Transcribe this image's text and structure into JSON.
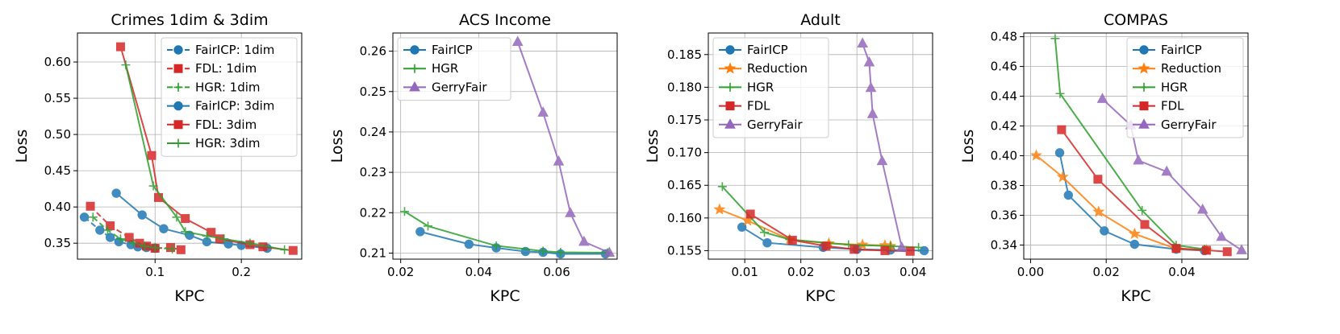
{
  "colors": {
    "blue": "#1f77b4",
    "orange": "#ff7f0e",
    "green": "#2ca02c",
    "red": "#d62728",
    "purple": "#9467bd"
  },
  "chart_data": [
    {
      "type": "line",
      "title": "Crimes 1dim & 3dim",
      "xlabel": "KPC",
      "ylabel": "Loss",
      "xlim": [
        0.01,
        0.27
      ],
      "ylim": [
        0.328,
        0.64
      ],
      "xticks": [
        "0.1",
        "0.2"
      ],
      "xtick_values": [
        0.1,
        0.2
      ],
      "yticks": [
        "0.35",
        "0.40",
        "0.45",
        "0.50",
        "0.55",
        "0.60"
      ],
      "ytick_values": [
        0.35,
        0.4,
        0.45,
        0.5,
        0.55,
        0.6
      ],
      "grid": true,
      "legend_position": "top-right",
      "series": [
        {
          "name": "FairICP: 1dim",
          "color": "blue",
          "marker": "circle",
          "dashed": true,
          "points": [
            [
              0.018,
              0.386
            ],
            [
              0.036,
              0.368
            ],
            [
              0.048,
              0.358
            ],
            [
              0.058,
              0.352
            ],
            [
              0.072,
              0.348
            ],
            [
              0.08,
              0.345
            ],
            [
              0.09,
              0.344
            ],
            [
              0.1,
              0.343
            ]
          ]
        },
        {
          "name": "FDL: 1dim",
          "color": "red",
          "marker": "square",
          "dashed": true,
          "points": [
            [
              0.025,
              0.401
            ],
            [
              0.048,
              0.374
            ],
            [
              0.07,
              0.358
            ],
            [
              0.082,
              0.35
            ],
            [
              0.09,
              0.346
            ],
            [
              0.1,
              0.343
            ],
            [
              0.118,
              0.344
            ],
            [
              0.13,
              0.341
            ]
          ]
        },
        {
          "name": "HGR: 1dim",
          "color": "green",
          "marker": "plus",
          "dashed": true,
          "points": [
            [
              0.028,
              0.386
            ],
            [
              0.045,
              0.368
            ],
            [
              0.06,
              0.356
            ],
            [
              0.075,
              0.35
            ],
            [
              0.088,
              0.346
            ],
            [
              0.1,
              0.344
            ],
            [
              0.12,
              0.342
            ]
          ]
        },
        {
          "name": "FairICP: 3dim",
          "color": "blue",
          "marker": "circle",
          "dashed": false,
          "points": [
            [
              0.055,
              0.419
            ],
            [
              0.085,
              0.389
            ],
            [
              0.11,
              0.37
            ],
            [
              0.14,
              0.361
            ],
            [
              0.16,
              0.352
            ],
            [
              0.185,
              0.349
            ],
            [
              0.2,
              0.347
            ],
            [
              0.23,
              0.343
            ]
          ]
        },
        {
          "name": "FDL: 3dim",
          "color": "red",
          "marker": "square",
          "dashed": false,
          "points": [
            [
              0.06,
              0.621
            ],
            [
              0.096,
              0.471
            ],
            [
              0.104,
              0.413
            ],
            [
              0.135,
              0.384
            ],
            [
              0.165,
              0.365
            ],
            [
              0.175,
              0.356
            ],
            [
              0.21,
              0.348
            ],
            [
              0.225,
              0.345
            ],
            [
              0.26,
              0.34
            ]
          ]
        },
        {
          "name": "HGR: 3dim",
          "color": "green",
          "marker": "plus",
          "dashed": false,
          "points": [
            [
              0.066,
              0.596
            ],
            [
              0.098,
              0.429
            ],
            [
              0.125,
              0.386
            ],
            [
              0.135,
              0.366
            ],
            [
              0.16,
              0.36
            ],
            [
              0.18,
              0.356
            ],
            [
              0.21,
              0.35
            ],
            [
              0.25,
              0.341
            ]
          ]
        }
      ]
    },
    {
      "type": "line",
      "title": "ACS Income",
      "xlabel": "KPC",
      "ylabel": "Loss",
      "xlim": [
        0.018,
        0.0755
      ],
      "ylim": [
        0.2085,
        0.2645
      ],
      "xticks": [
        "0.02",
        "0.04",
        "0.06"
      ],
      "xtick_values": [
        0.02,
        0.04,
        0.06
      ],
      "yticks": [
        "0.21",
        "0.22",
        "0.23",
        "0.24",
        "0.25",
        "0.26"
      ],
      "ytick_values": [
        0.21,
        0.22,
        0.23,
        0.24,
        0.25,
        0.26
      ],
      "grid": true,
      "legend_position": "top-left",
      "series": [
        {
          "name": "FairICP",
          "color": "blue",
          "marker": "circle",
          "dashed": false,
          "points": [
            [
              0.025,
              0.2153
            ],
            [
              0.0375,
              0.2122
            ],
            [
              0.0445,
              0.2113
            ],
            [
              0.052,
              0.2104
            ],
            [
              0.0565,
              0.2102
            ],
            [
              0.061,
              0.2098
            ],
            [
              0.0725,
              0.2098
            ]
          ]
        },
        {
          "name": "HGR",
          "color": "green",
          "marker": "plus",
          "dashed": false,
          "points": [
            [
              0.021,
              0.2203
            ],
            [
              0.027,
              0.2167
            ],
            [
              0.0445,
              0.2118
            ],
            [
              0.0565,
              0.2105
            ],
            [
              0.061,
              0.2102
            ],
            [
              0.073,
              0.2101
            ]
          ]
        },
        {
          "name": "GerryFair",
          "color": "purple",
          "marker": "triangle",
          "dashed": false,
          "points": [
            [
              0.05,
              0.2623
            ],
            [
              0.0565,
              0.2448
            ],
            [
              0.0605,
              0.2327
            ],
            [
              0.0635,
              0.2199
            ],
            [
              0.067,
              0.2128
            ],
            [
              0.0735,
              0.2101
            ]
          ]
        }
      ]
    },
    {
      "type": "line",
      "title": "Adult",
      "xlabel": "KPC",
      "ylabel": "Loss",
      "xlim": [
        0.0035,
        0.0435
      ],
      "ylim": [
        0.1537,
        0.1883
      ],
      "xticks": [
        "0.01",
        "0.02",
        "0.03",
        "0.04"
      ],
      "xtick_values": [
        0.01,
        0.02,
        0.03,
        0.04
      ],
      "yticks": [
        "0.155",
        "0.160",
        "0.165",
        "0.170",
        "0.175",
        "0.180",
        "0.185"
      ],
      "ytick_values": [
        0.155,
        0.16,
        0.165,
        0.17,
        0.175,
        0.18,
        0.185
      ],
      "grid": true,
      "legend_position": "top-left",
      "series": [
        {
          "name": "FairICP",
          "color": "blue",
          "marker": "circle",
          "dashed": false,
          "points": [
            [
              0.0095,
              0.1586
            ],
            [
              0.014,
              0.1562
            ],
            [
              0.024,
              0.1555
            ],
            [
              0.03,
              0.1552
            ],
            [
              0.036,
              0.1551
            ],
            [
              0.042,
              0.155
            ]
          ]
        },
        {
          "name": "Reduction",
          "color": "orange",
          "marker": "star",
          "dashed": false,
          "points": [
            [
              0.0055,
              0.1613
            ],
            [
              0.0105,
              0.1596
            ],
            [
              0.018,
              0.1567
            ],
            [
              0.025,
              0.1561
            ],
            [
              0.031,
              0.1559
            ],
            [
              0.035,
              0.1558
            ],
            [
              0.036,
              0.1557
            ]
          ]
        },
        {
          "name": "HGR",
          "color": "green",
          "marker": "plus",
          "dashed": false,
          "points": [
            [
              0.006,
              0.1648
            ],
            [
              0.0135,
              0.1578
            ],
            [
              0.018,
              0.1567
            ],
            [
              0.0285,
              0.1559
            ],
            [
              0.036,
              0.1557
            ],
            [
              0.041,
              0.1555
            ]
          ]
        },
        {
          "name": "FDL",
          "color": "red",
          "marker": "square",
          "dashed": false,
          "points": [
            [
              0.011,
              0.1606
            ],
            [
              0.0185,
              0.1566
            ],
            [
              0.0245,
              0.1557
            ],
            [
              0.0295,
              0.1552
            ],
            [
              0.035,
              0.155
            ],
            [
              0.0395,
              0.1549
            ]
          ]
        },
        {
          "name": "GerryFair",
          "color": "purple",
          "marker": "triangle",
          "dashed": false,
          "points": [
            [
              0.031,
              0.1867
            ],
            [
              0.0322,
              0.1838
            ],
            [
              0.0325,
              0.1799
            ],
            [
              0.0328,
              0.1759
            ],
            [
              0.0345,
              0.1687
            ],
            [
              0.038,
              0.1555
            ]
          ]
        }
      ]
    },
    {
      "type": "line",
      "title": "COMPAS",
      "xlabel": "KPC",
      "ylabel": "Loss",
      "xlim": [
        -0.0018,
        0.0575
      ],
      "ylim": [
        0.3305,
        0.4825
      ],
      "xticks": [
        "0.00",
        "0.02",
        "0.04"
      ],
      "xtick_values": [
        0.0,
        0.02,
        0.04
      ],
      "yticks": [
        "0.34",
        "0.36",
        "0.38",
        "0.40",
        "0.42",
        "0.44",
        "0.46",
        "0.48"
      ],
      "ytick_values": [
        0.34,
        0.36,
        0.38,
        0.4,
        0.42,
        0.44,
        0.46,
        0.48
      ],
      "grid": true,
      "legend_position": "top-right",
      "series": [
        {
          "name": "FairICP",
          "color": "blue",
          "marker": "circle",
          "dashed": false,
          "points": [
            [
              0.0077,
              0.402
            ],
            [
              0.01,
              0.3735
            ],
            [
              0.0195,
              0.3495
            ],
            [
              0.0275,
              0.3405
            ],
            [
              0.0385,
              0.3372
            ],
            [
              0.046,
              0.3362
            ]
          ]
        },
        {
          "name": "Reduction",
          "color": "orange",
          "marker": "star",
          "dashed": false,
          "points": [
            [
              0.0015,
              0.4002
            ],
            [
              0.0085,
              0.3857
            ],
            [
              0.018,
              0.3623
            ],
            [
              0.0275,
              0.3475
            ],
            [
              0.0385,
              0.3375
            ],
            [
              0.0465,
              0.3365
            ]
          ]
        },
        {
          "name": "HGR",
          "color": "green",
          "marker": "plus",
          "dashed": false,
          "points": [
            [
              0.0065,
              0.4788
            ],
            [
              0.0078,
              0.4418
            ],
            [
              0.0295,
              0.3633
            ],
            [
              0.0385,
              0.3398
            ],
            [
              0.046,
              0.3372
            ]
          ]
        },
        {
          "name": "FDL",
          "color": "red",
          "marker": "square",
          "dashed": false,
          "points": [
            [
              0.0082,
              0.4175
            ],
            [
              0.0178,
              0.3842
            ],
            [
              0.0302,
              0.3538
            ],
            [
              0.0385,
              0.3378
            ],
            [
              0.0465,
              0.3365
            ],
            [
              0.052,
              0.3355
            ]
          ]
        },
        {
          "name": "GerryFair",
          "color": "purple",
          "marker": "triangle",
          "dashed": false,
          "points": [
            [
              0.019,
              0.4382
            ],
            [
              0.0265,
              0.4205
            ],
            [
              0.0285,
              0.3968
            ],
            [
              0.036,
              0.3893
            ],
            [
              0.0455,
              0.3638
            ],
            [
              0.0505,
              0.3455
            ],
            [
              0.0558,
              0.3365
            ]
          ]
        }
      ]
    }
  ]
}
